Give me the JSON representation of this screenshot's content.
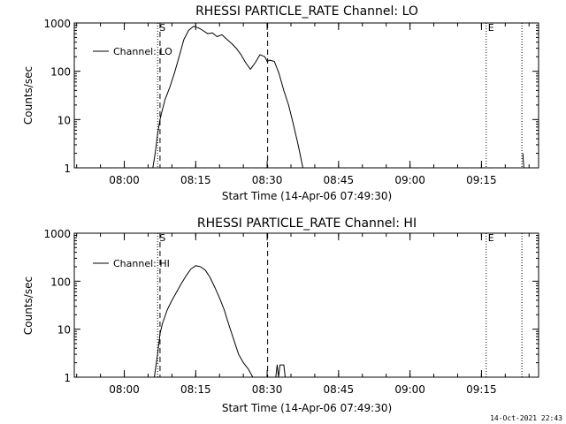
{
  "chart_data": [
    {
      "type": "line",
      "title": "RHESSI PARTICLE_RATE Channel: LO",
      "xlabel": "Start Time (14-Apr-06 07:49:30)",
      "ylabel": "Counts/sec",
      "yscale": "log",
      "ylim": [
        1,
        1000
      ],
      "x_unit": "minutes after 07:49:30",
      "xlim": [
        0,
        97.5
      ],
      "xticks": [
        {
          "label": "08:00",
          "x": 10.5
        },
        {
          "label": "08:15",
          "x": 25.5
        },
        {
          "label": "08:30",
          "x": 40.5
        },
        {
          "label": "08:45",
          "x": 55.5
        },
        {
          "label": "09:00",
          "x": 70.5
        },
        {
          "label": "09:15",
          "x": 85.5
        }
      ],
      "yticks": [
        {
          "label": "1",
          "y": 1
        },
        {
          "label": "10",
          "y": 10
        },
        {
          "label": "100",
          "y": 100
        },
        {
          "label": "1000",
          "y": 1000
        }
      ],
      "legend": {
        "label": "Channel: LO",
        "position": "top-left"
      },
      "markers": [
        {
          "label": "S",
          "x": 17.5,
          "style": "dotted"
        },
        {
          "label": "",
          "x": 18.0,
          "style": "dashed"
        },
        {
          "label": "",
          "x": 40.6,
          "style": "dashed"
        },
        {
          "label": "E",
          "x": 86.5,
          "style": "dotted"
        },
        {
          "label": "",
          "x": 94.0,
          "style": "dotted"
        }
      ],
      "series": [
        {
          "name": "Channel: LO",
          "x": [
            16.5,
            17.0,
            17.5,
            18.0,
            18.5,
            19.0,
            20.0,
            21.0,
            22.0,
            23.0,
            24.0,
            25.0,
            26.0,
            27.0,
            28.0,
            29.0,
            30.0,
            31.0,
            32.0,
            33.0,
            34.0,
            35.0,
            36.0,
            37.0,
            38.0,
            39.0,
            40.0,
            40.5,
            41.0,
            42.0,
            43.0,
            44.0,
            45.0,
            46.0,
            47.0,
            48.0
          ],
          "y": [
            1,
            2,
            5,
            10,
            16,
            25,
            45,
            90,
            200,
            450,
            700,
            850,
            800,
            700,
            600,
            620,
            520,
            570,
            460,
            380,
            300,
            220,
            150,
            110,
            150,
            220,
            200,
            160,
            170,
            160,
            90,
            40,
            20,
            8,
            3,
            1
          ]
        },
        {
          "name": "Channel: LO",
          "x": [
            94.2,
            94.4
          ],
          "y": [
            2,
            1
          ]
        }
      ]
    },
    {
      "type": "line",
      "title": "RHESSI PARTICLE_RATE Channel: HI",
      "xlabel": "Start Time (14-Apr-06 07:49:30)",
      "ylabel": "Counts/sec",
      "yscale": "log",
      "ylim": [
        1,
        1000
      ],
      "x_unit": "minutes after 07:49:30",
      "xlim": [
        0,
        97.5
      ],
      "xticks": [
        {
          "label": "08:00",
          "x": 10.5
        },
        {
          "label": "08:15",
          "x": 25.5
        },
        {
          "label": "08:30",
          "x": 40.5
        },
        {
          "label": "08:45",
          "x": 55.5
        },
        {
          "label": "09:00",
          "x": 70.5
        },
        {
          "label": "09:15",
          "x": 85.5
        }
      ],
      "yticks": [
        {
          "label": "1",
          "y": 1
        },
        {
          "label": "10",
          "y": 10
        },
        {
          "label": "100",
          "y": 100
        },
        {
          "label": "1000",
          "y": 1000
        }
      ],
      "legend": {
        "label": "Channel: HI",
        "position": "top-left"
      },
      "markers": [
        {
          "label": "S",
          "x": 17.5,
          "style": "dotted"
        },
        {
          "label": "",
          "x": 18.0,
          "style": "dashed"
        },
        {
          "label": "",
          "x": 40.6,
          "style": "dashed"
        },
        {
          "label": "E",
          "x": 86.5,
          "style": "dotted"
        },
        {
          "label": "",
          "x": 94.0,
          "style": "dotted"
        }
      ],
      "series": [
        {
          "name": "Channel: HI",
          "x": [
            16.8,
            17.5,
            18.0,
            18.5,
            19.5,
            20.5,
            21.5,
            22.5,
            23.5,
            24.5,
            25.5,
            26.5,
            27.5,
            28.5,
            29.5,
            30.5,
            31.5,
            32.5,
            33.5,
            34.5,
            35.5,
            36.5,
            37.5
          ],
          "y": [
            1,
            3,
            8,
            13,
            25,
            40,
            60,
            90,
            130,
            180,
            210,
            200,
            170,
            120,
            75,
            45,
            25,
            12,
            6,
            3,
            2,
            1.5,
            1
          ]
        },
        {
          "name": "Channel: HI",
          "x": [
            42.3,
            42.6,
            42.9,
            43.2,
            43.7,
            44.0,
            44.3
          ],
          "y": [
            1,
            1.8,
            1,
            1.8,
            1.8,
            1.8,
            1
          ]
        }
      ]
    }
  ],
  "timestamp": "14-Oct-2021 22:43"
}
